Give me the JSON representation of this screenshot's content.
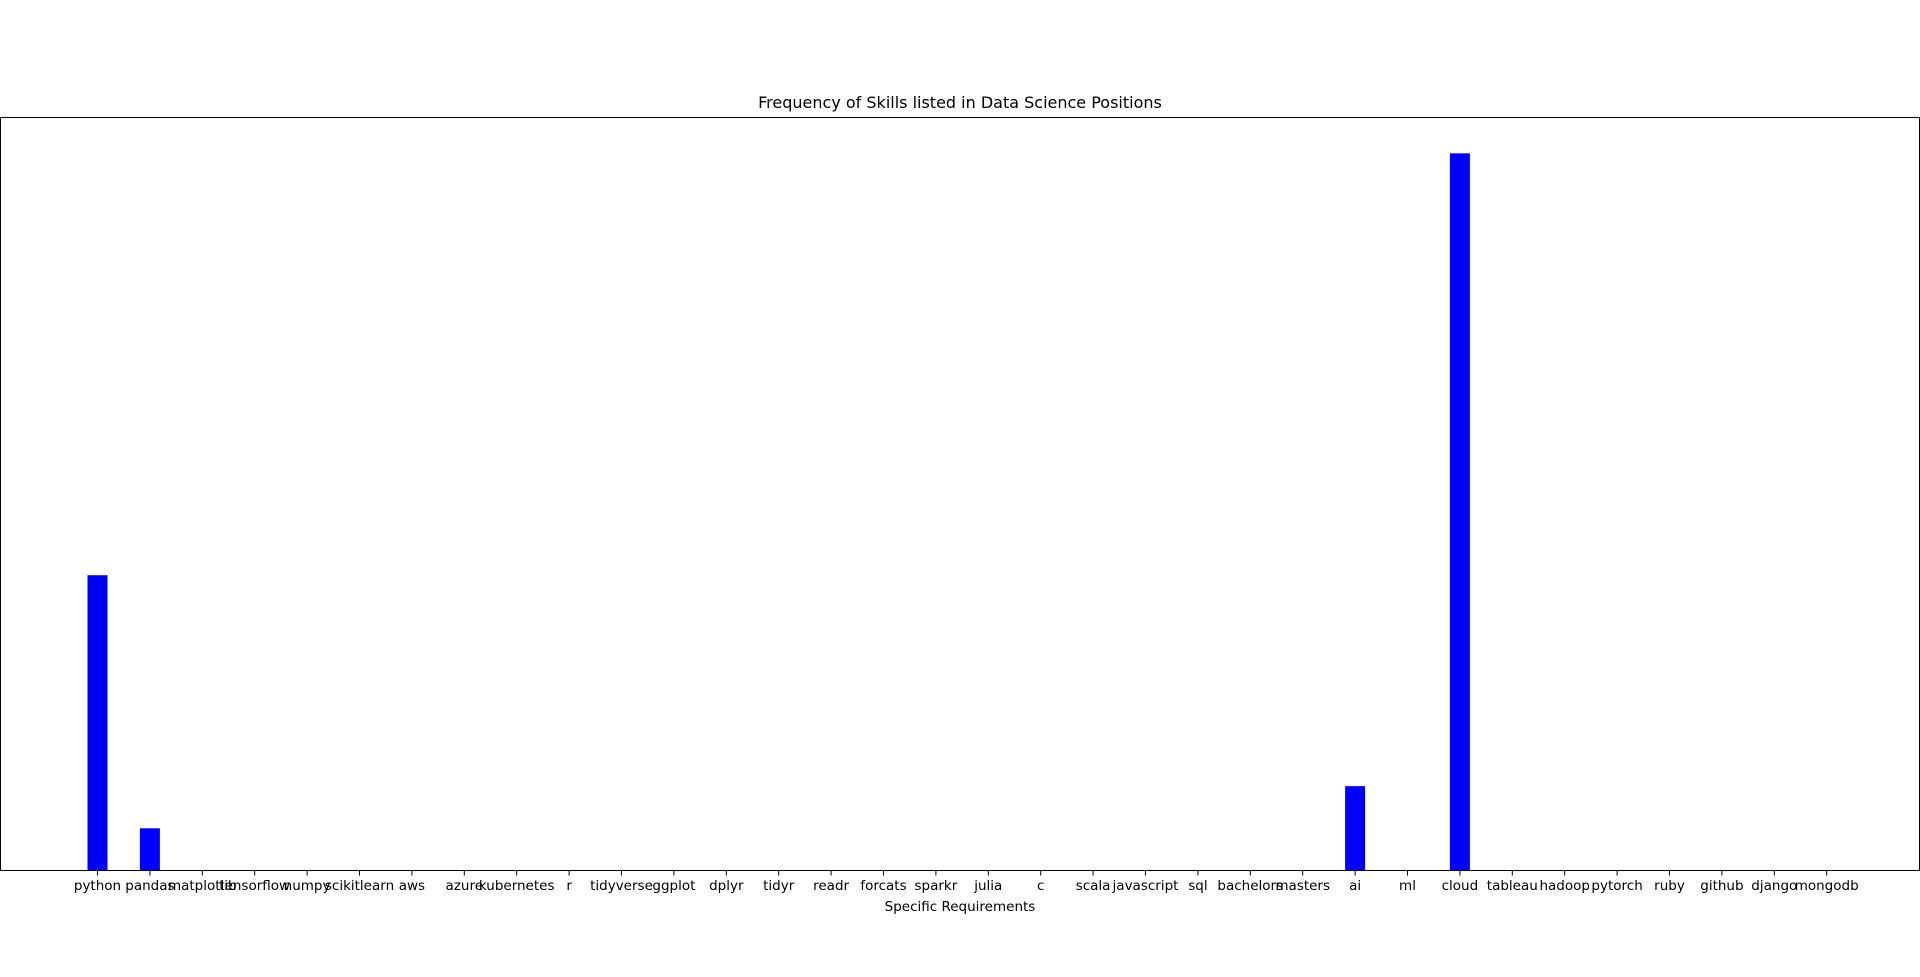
{
  "chart_data": {
    "type": "bar",
    "title": "Frequency of Skills listed in Data Science Positions",
    "xlabel": "Specific Requirements",
    "ylabel": "",
    "categories": [
      "python",
      "pandas",
      "matplotlib",
      "tensorflow",
      "numpy",
      "scikitlearn",
      "aws",
      "azure",
      "kubernetes",
      "r",
      "tidyverse",
      "ggplot",
      "dplyr",
      "tidyr",
      "readr",
      "forcats",
      "sparkr",
      "julia",
      "c",
      "scala",
      "javascript",
      "sql",
      "bachelors",
      "masters",
      "ai",
      "ml",
      "cloud",
      "tableau",
      "hadoop",
      "pytorch",
      "ruby",
      "github",
      "django",
      "mongodb"
    ],
    "values": [
      14,
      2,
      0,
      0,
      0,
      0,
      0,
      0,
      0,
      0,
      0,
      0,
      0,
      0,
      0,
      0,
      0,
      0,
      0,
      0,
      0,
      0,
      0,
      0,
      4,
      0,
      34,
      0,
      0,
      0,
      0,
      0,
      0,
      0
    ],
    "ylim": [
      0,
      35.7
    ],
    "grid": false,
    "y_ticks_visible": false,
    "bar_color": "#0000ff"
  }
}
